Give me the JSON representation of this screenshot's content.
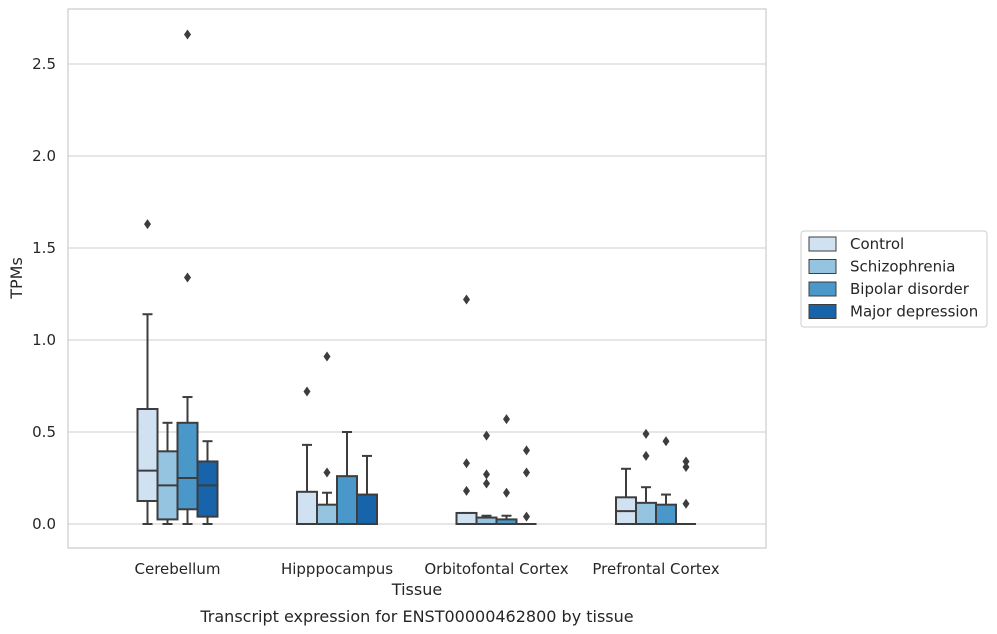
{
  "caption": "Transcript expression for ENST00000462800 by tissue",
  "chart_data": {
    "type": "box",
    "xlabel": "Tissue",
    "ylabel": "TPMs",
    "ylim": [
      -0.13,
      2.8
    ],
    "yticks": [
      "0.0",
      "0.5",
      "1.0",
      "1.5",
      "2.0",
      "2.5"
    ],
    "grid": true,
    "legend_position": "right",
    "categories": [
      "Cerebellum",
      "Hipppocampus",
      "Orbitofontal Cortex",
      "Prefrontal Cortex"
    ],
    "series": [
      {
        "name": "Control",
        "color": "#d0e1f2",
        "boxes": [
          {
            "whislo": 0.0,
            "q1": 0.125,
            "med": 0.29,
            "q3": 0.625,
            "whishi": 1.14,
            "fliers": [
              1.63
            ]
          },
          {
            "whislo": 0.0,
            "q1": 0.0,
            "med": 0.0,
            "q3": 0.175,
            "whishi": 0.43,
            "fliers": [
              0.72
            ]
          },
          {
            "whislo": 0.0,
            "q1": 0.0,
            "med": 0.0,
            "q3": 0.06,
            "whishi": 0.06,
            "fliers": [
              0.18,
              0.33,
              1.22
            ]
          },
          {
            "whislo": 0.0,
            "q1": 0.0,
            "med": 0.07,
            "q3": 0.145,
            "whishi": 0.3,
            "fliers": []
          }
        ]
      },
      {
        "name": "Schizophrenia",
        "color": "#94c4df",
        "boxes": [
          {
            "whislo": 0.0,
            "q1": 0.025,
            "med": 0.21,
            "q3": 0.395,
            "whishi": 0.55,
            "fliers": []
          },
          {
            "whislo": 0.0,
            "q1": 0.0,
            "med": 0.0,
            "q3": 0.105,
            "whishi": 0.17,
            "fliers": [
              0.28,
              0.91
            ]
          },
          {
            "whislo": 0.0,
            "q1": 0.0,
            "med": 0.0,
            "q3": 0.035,
            "whishi": 0.045,
            "fliers": [
              0.22,
              0.27,
              0.48
            ]
          },
          {
            "whislo": 0.0,
            "q1": 0.0,
            "med": 0.0,
            "q3": 0.115,
            "whishi": 0.2,
            "fliers": [
              0.37,
              0.49
            ]
          }
        ]
      },
      {
        "name": "Bipolar disorder",
        "color": "#4a98c9",
        "boxes": [
          {
            "whislo": 0.0,
            "q1": 0.08,
            "med": 0.25,
            "q3": 0.55,
            "whishi": 0.69,
            "fliers": [
              1.34,
              2.66
            ]
          },
          {
            "whislo": 0.0,
            "q1": 0.0,
            "med": 0.0,
            "q3": 0.26,
            "whishi": 0.5,
            "fliers": []
          },
          {
            "whislo": 0.0,
            "q1": 0.0,
            "med": 0.0,
            "q3": 0.025,
            "whishi": 0.045,
            "fliers": [
              0.17,
              0.57
            ]
          },
          {
            "whislo": 0.0,
            "q1": 0.0,
            "med": 0.0,
            "q3": 0.105,
            "whishi": 0.16,
            "fliers": [
              0.45
            ]
          }
        ]
      },
      {
        "name": "Major depression",
        "color": "#1764ab",
        "boxes": [
          {
            "whislo": 0.0,
            "q1": 0.04,
            "med": 0.21,
            "q3": 0.34,
            "whishi": 0.45,
            "fliers": []
          },
          {
            "whislo": 0.0,
            "q1": 0.0,
            "med": 0.0,
            "q3": 0.16,
            "whishi": 0.37,
            "fliers": []
          },
          {
            "whislo": 0.0,
            "q1": 0.0,
            "med": 0.0,
            "q3": 0.0,
            "whishi": 0.0,
            "fliers": [
              0.04,
              0.28,
              0.4
            ]
          },
          {
            "whislo": 0.0,
            "q1": 0.0,
            "med": 0.0,
            "q3": 0.0,
            "whishi": 0.0,
            "fliers": [
              0.11,
              0.31,
              0.34
            ]
          }
        ]
      }
    ]
  }
}
